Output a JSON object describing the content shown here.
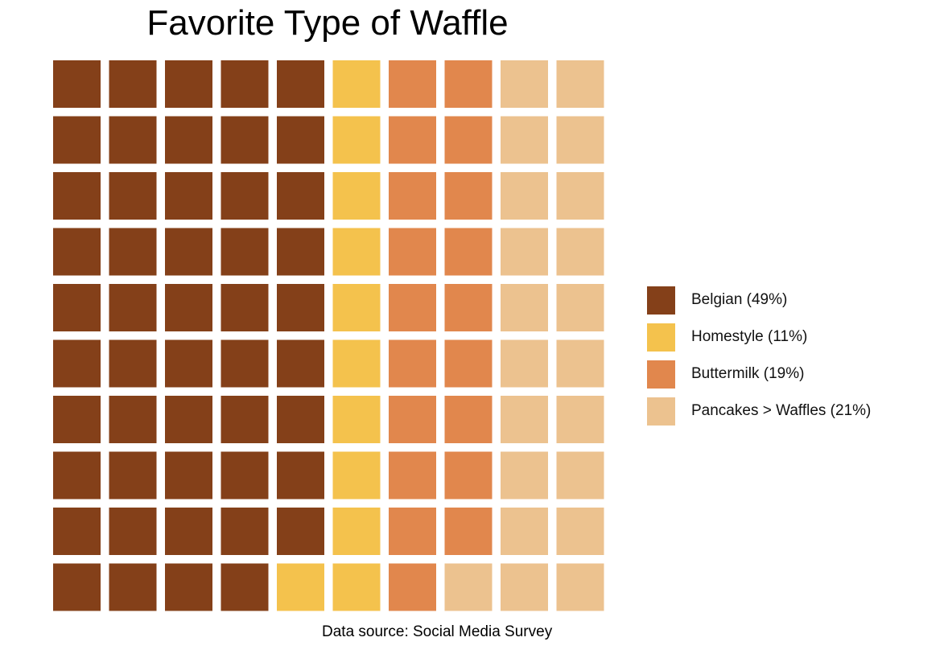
{
  "chart_data": {
    "type": "waffle",
    "title": "Favorite Type of Waffle",
    "caption": "Data source: Social Media Survey",
    "grid": {
      "rows": 10,
      "cols": 10,
      "fill_order": "column-major, top-to-bottom"
    },
    "categories": [
      {
        "name": "Belgian",
        "label": "Belgian (49%)",
        "value": 49,
        "color": "#844019"
      },
      {
        "name": "Homestyle",
        "label": "Homestyle (11%)",
        "value": 11,
        "color": "#F4C24D"
      },
      {
        "name": "Buttermilk",
        "label": "Buttermilk (19%)",
        "value": 19,
        "color": "#E1874D"
      },
      {
        "name": "Pancakes > Waffles",
        "label": "Pancakes > Waffles (21%)",
        "value": 21,
        "color": "#ECC28F"
      }
    ],
    "legend_position": "right"
  }
}
